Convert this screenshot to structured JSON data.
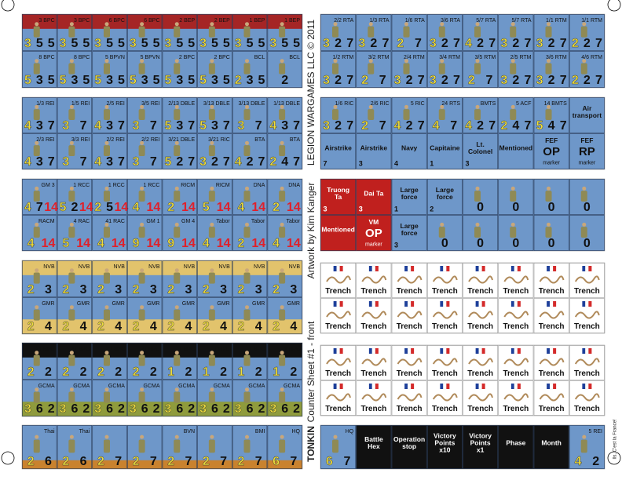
{
  "sheet": {
    "publisher": "LEGION WARGAMES LLC © 2011",
    "artwork": "Artwork by Kim Kanger",
    "title": "Counter Sheet #1 - front",
    "game": "TONKIN",
    "motto": "Ils, C'est la France!"
  },
  "blocks": [
    {
      "counters": [
        {
          "unit": "3 BPC",
          "factors": [
            3,
            5,
            5
          ]
        },
        {
          "unit": "3 BPC",
          "factors": [
            3,
            5,
            5
          ]
        },
        {
          "unit": "6 BPC",
          "factors": [
            3,
            5,
            5
          ]
        },
        {
          "unit": "6 BPC",
          "factors": [
            3,
            5,
            5
          ]
        },
        {
          "unit": "2 BEP",
          "factors": [
            3,
            5,
            5
          ]
        },
        {
          "unit": "2 BEP",
          "factors": [
            3,
            5,
            5
          ]
        },
        {
          "unit": "1 BEP",
          "factors": [
            3,
            5,
            5
          ]
        },
        {
          "unit": "1 BEP",
          "factors": [
            3,
            5,
            5
          ]
        },
        {
          "unit": "8 BPC",
          "factors": [
            5,
            3,
            5
          ]
        },
        {
          "unit": "8 BPC",
          "factors": [
            5,
            3,
            5
          ]
        },
        {
          "unit": "5 BPVN",
          "factors": [
            5,
            3,
            5
          ]
        },
        {
          "unit": "5 BPVN",
          "factors": [
            5,
            3,
            5
          ]
        },
        {
          "unit": "2 BPC",
          "factors": [
            5,
            3,
            5
          ]
        },
        {
          "unit": "2 BPC",
          "factors": [
            5,
            3,
            5
          ]
        },
        {
          "unit": "BCL",
          "factors": [
            2,
            3,
            5
          ]
        },
        {
          "unit": "BCL",
          "factors": [
            2
          ]
        }
      ]
    },
    {
      "counters": [
        {
          "unit": "1/3 REI",
          "factors": [
            4,
            3,
            7
          ]
        },
        {
          "unit": "1/5 REI",
          "factors": [
            3,
            7
          ]
        },
        {
          "unit": "2/5 REI",
          "factors": [
            4,
            3,
            7
          ]
        },
        {
          "unit": "3/5 REI",
          "factors": [
            3,
            7
          ]
        },
        {
          "unit": "2/13 DBLE",
          "factors": [
            5,
            3,
            7
          ]
        },
        {
          "unit": "3/13 DBLE",
          "factors": [
            5,
            3,
            7
          ]
        },
        {
          "unit": "3/13 DBLE",
          "factors": [
            3,
            7
          ]
        },
        {
          "unit": "1/13 DBLE",
          "factors": [
            4,
            3,
            7
          ]
        },
        {
          "unit": "2/3 REI",
          "factors": [
            4,
            3,
            7
          ]
        },
        {
          "unit": "3/3 REI",
          "factors": [
            3,
            7
          ]
        },
        {
          "unit": "2/2 REI",
          "factors": [
            4,
            3,
            7
          ]
        },
        {
          "unit": "2/2 REI",
          "factors": [
            3,
            7
          ]
        },
        {
          "unit": "3/21 DBLE",
          "factors": [
            5,
            2,
            7
          ]
        },
        {
          "unit": "3/21 RIC",
          "factors": [
            3,
            2,
            7
          ]
        },
        {
          "unit": "BTA",
          "factors": [
            4,
            2,
            7
          ]
        },
        {
          "unit": "BTA",
          "factors": [
            2,
            4,
            7
          ]
        }
      ]
    },
    {
      "counters": [
        {
          "unit": "GM 3",
          "factors": [
            4,
            7,
            14
          ]
        },
        {
          "unit": "1 RCC",
          "factors": [
            5,
            2,
            14
          ]
        },
        {
          "unit": "1 RCC",
          "factors": [
            2,
            5,
            14
          ]
        },
        {
          "unit": "1 RCC",
          "factors": [
            4,
            14
          ]
        },
        {
          "unit": "RICM",
          "factors": [
            2,
            14
          ]
        },
        {
          "unit": "RICM",
          "factors": [
            5,
            14
          ]
        },
        {
          "unit": "DNA",
          "factors": [
            4,
            14
          ]
        },
        {
          "unit": "DNA",
          "factors": [
            2,
            14
          ]
        },
        {
          "unit": "RACM",
          "factors": [
            4,
            14
          ]
        },
        {
          "unit": "4 RAC",
          "factors": [
            5,
            14
          ]
        },
        {
          "unit": "41 RAC",
          "factors": [
            4,
            14
          ]
        },
        {
          "unit": "GM 1",
          "factors": [
            9,
            14
          ]
        },
        {
          "unit": "GM 4",
          "factors": [
            9,
            14
          ]
        },
        {
          "unit": "Tabor",
          "factors": [
            4,
            14
          ]
        },
        {
          "unit": "Tabor",
          "factors": [
            2,
            14
          ]
        },
        {
          "unit": "Tabor",
          "factors": [
            4,
            14
          ]
        }
      ]
    },
    {
      "counters": [
        {
          "unit": "NVB",
          "factors": [
            2,
            3
          ]
        },
        {
          "unit": "NVB",
          "factors": [
            2,
            3
          ]
        },
        {
          "unit": "NVB",
          "factors": [
            2,
            3
          ]
        },
        {
          "unit": "NVB",
          "factors": [
            2,
            3
          ]
        },
        {
          "unit": "NVB",
          "factors": [
            2,
            3
          ]
        },
        {
          "unit": "NVB",
          "factors": [
            2,
            3
          ]
        },
        {
          "unit": "NVB",
          "factors": [
            2,
            3
          ]
        },
        {
          "unit": "NVB",
          "factors": [
            2,
            3
          ]
        },
        {
          "unit": "GMR",
          "factors": [
            2,
            4
          ]
        },
        {
          "unit": "GMR",
          "factors": [
            2,
            4
          ]
        },
        {
          "unit": "GMR",
          "factors": [
            2,
            4
          ]
        },
        {
          "unit": "GMR",
          "factors": [
            2,
            4
          ]
        },
        {
          "unit": "GMR",
          "factors": [
            2,
            4
          ]
        },
        {
          "unit": "GMR",
          "factors": [
            2,
            4
          ]
        },
        {
          "unit": "GMR",
          "factors": [
            2,
            4
          ]
        },
        {
          "unit": "GMR",
          "factors": [
            2,
            4
          ]
        }
      ]
    },
    {
      "counters": [
        {
          "unit": "21 BPC",
          "factors": [
            2,
            2
          ]
        },
        {
          "unit": "21 BPC",
          "factors": [
            2,
            2
          ]
        },
        {
          "unit": "21 BPC",
          "factors": [
            2,
            2
          ]
        },
        {
          "unit": "21 BPC",
          "factors": [
            2,
            2
          ]
        },
        {
          "unit": "1 BPC",
          "factors": [
            1,
            2
          ]
        },
        {
          "unit": "1 BPC",
          "factors": [
            1,
            2
          ]
        },
        {
          "unit": "1 BPC",
          "factors": [
            1,
            2
          ]
        },
        {
          "unit": "1 BPC",
          "factors": [
            1,
            2
          ]
        },
        {
          "unit": "GCMA",
          "factors": [
            3,
            6,
            2
          ]
        },
        {
          "unit": "GCMA",
          "factors": [
            3,
            6,
            2
          ]
        },
        {
          "unit": "GCMA",
          "factors": [
            3,
            6,
            2
          ]
        },
        {
          "unit": "GCMA",
          "factors": [
            3,
            6,
            2
          ]
        },
        {
          "unit": "GCMA",
          "factors": [
            3,
            6,
            2
          ]
        },
        {
          "unit": "GCMA",
          "factors": [
            3,
            6,
            2
          ]
        },
        {
          "unit": "GCMA",
          "factors": [
            3,
            6,
            2
          ]
        },
        {
          "unit": "GCMA",
          "factors": [
            3,
            6,
            2
          ]
        }
      ]
    },
    {
      "counters": [
        {
          "unit": "2/2 RTA",
          "factors": [
            3,
            2,
            7
          ]
        },
        {
          "unit": "1/3 RTA",
          "factors": [
            3,
            2,
            7
          ]
        },
        {
          "unit": "1/6 RTA",
          "factors": [
            2,
            7
          ]
        },
        {
          "unit": "3/6 RTA",
          "factors": [
            3,
            2,
            7
          ]
        },
        {
          "unit": "5/7 RTA",
          "factors": [
            4,
            2,
            7
          ]
        },
        {
          "unit": "5/7 RTA",
          "factors": [
            3,
            2,
            7
          ]
        },
        {
          "unit": "1/1 RTM",
          "factors": [
            3,
            2,
            7
          ]
        },
        {
          "unit": "1/1 RTM",
          "factors": [
            2,
            2,
            7
          ]
        },
        {
          "unit": "1/2 RTM",
          "factors": [
            3,
            2,
            7
          ]
        },
        {
          "unit": "3/2 RTM",
          "factors": [
            2,
            7
          ]
        },
        {
          "unit": "2/4 RTM",
          "factors": [
            3,
            2,
            7
          ]
        },
        {
          "unit": "3/4 RTM",
          "factors": [
            3,
            2,
            7
          ]
        },
        {
          "unit": "3/5 RTM",
          "factors": [
            2,
            7
          ]
        },
        {
          "unit": "2/5 RTM",
          "factors": [
            3,
            2,
            7
          ]
        },
        {
          "unit": "3/6 RTM",
          "factors": [
            3,
            2,
            7
          ]
        },
        {
          "unit": "4/6 RTM",
          "factors": [
            2,
            2,
            7
          ]
        }
      ]
    },
    {
      "counters": [
        {
          "unit": "1/6 RIC",
          "factors": [
            3,
            2,
            7
          ]
        },
        {
          "unit": "2/6 RIC",
          "factors": [
            2,
            7
          ]
        },
        {
          "unit": "5 RIC",
          "factors": [
            4,
            2,
            7
          ]
        },
        {
          "unit": "24 RTS",
          "factors": [
            4,
            7
          ]
        },
        {
          "unit": "BMTS",
          "factors": [
            4,
            2,
            7
          ]
        },
        {
          "unit": "5 ACF",
          "factors": [
            2,
            4,
            7
          ]
        },
        {
          "unit": "14 BMTS",
          "factors": [
            5,
            4,
            7
          ]
        },
        {
          "label": "Air transport"
        },
        {
          "label": "Airstrike",
          "factors": [
            7
          ]
        },
        {
          "label": "Airstrike",
          "factors": [
            3
          ]
        },
        {
          "label": "Navy",
          "factors": [
            4
          ]
        },
        {
          "label": "Capitaine",
          "factors": [
            1
          ]
        },
        {
          "label": "Lt. Colonel",
          "factors": [
            3
          ]
        },
        {
          "label": "Mentioned"
        },
        {
          "label": "FEF",
          "sub": "OP",
          "note": "marker"
        },
        {
          "label": "FEF",
          "sub": "RP",
          "note": "marker"
        }
      ]
    },
    {
      "counters": [
        {
          "label": "Truong Ta",
          "factors": [
            3
          ]
        },
        {
          "label": "Dai Ta",
          "factors": [
            3
          ]
        },
        {
          "label": "Large force",
          "factors": [
            1
          ]
        },
        {
          "label": "Large force",
          "factors": [
            2
          ]
        },
        {
          "factors": [
            0
          ]
        },
        {
          "factors": [
            0
          ]
        },
        {
          "factors": [
            0
          ]
        },
        {
          "factors": [
            0
          ]
        },
        {
          "label": "Mentioned"
        },
        {
          "label": "VM",
          "sub": "OP",
          "note": "marker"
        },
        {
          "label": "Large force",
          "factors": [
            3
          ]
        },
        {
          "factors": [
            0
          ]
        },
        {
          "factors": [
            0
          ]
        },
        {
          "factors": [
            0
          ]
        },
        {
          "factors": [
            0
          ]
        },
        {
          "factors": [
            0
          ]
        }
      ]
    },
    {
      "counters": [
        {
          "label": "Trench"
        },
        {
          "label": "Trench"
        },
        {
          "label": "Trench"
        },
        {
          "label": "Trench"
        },
        {
          "label": "Trench"
        },
        {
          "label": "Trench"
        },
        {
          "label": "Trench"
        },
        {
          "label": "Trench"
        },
        {
          "label": "Trench"
        },
        {
          "label": "Trench"
        },
        {
          "label": "Trench"
        },
        {
          "label": "Trench"
        },
        {
          "label": "Trench"
        },
        {
          "label": "Trench"
        },
        {
          "label": "Trench"
        },
        {
          "label": "Trench"
        }
      ]
    },
    {
      "counters": [
        {
          "label": "Trench"
        },
        {
          "label": "Trench"
        },
        {
          "label": "Trench"
        },
        {
          "label": "Trench"
        },
        {
          "label": "Trench"
        },
        {
          "label": "Trench"
        },
        {
          "label": "Trench"
        },
        {
          "label": "Trench"
        },
        {
          "label": "Trench"
        },
        {
          "label": "Trench"
        },
        {
          "label": "Trench"
        },
        {
          "label": "Trench"
        },
        {
          "label": "Trench"
        },
        {
          "label": "Trench"
        },
        {
          "label": "Trench"
        },
        {
          "label": "Trench"
        }
      ]
    },
    {
      "counters": [
        {
          "unit": "Thai",
          "factors": [
            2,
            6
          ]
        },
        {
          "unit": "Thai",
          "factors": [
            2,
            6
          ]
        },
        {
          "factors": [
            2,
            7
          ]
        },
        {
          "factors": [
            2,
            7
          ]
        },
        {
          "unit": "BVN",
          "factors": [
            2,
            7
          ]
        },
        {
          "factors": [
            2,
            7
          ]
        },
        {
          "unit": "BMI",
          "factors": [
            2,
            7
          ]
        },
        {
          "unit": "HQ",
          "factors": [
            6,
            7
          ]
        }
      ]
    },
    {
      "counters": [
        {
          "unit": "HQ",
          "factors": [
            6,
            7
          ]
        },
        {
          "label": "Battle Hex"
        },
        {
          "label": "Operation stop"
        },
        {
          "label": "Victory Points x10"
        },
        {
          "label": "Victory Points x1"
        },
        {
          "label": "Phase"
        },
        {
          "label": "Month"
        },
        {
          "unit": "5 REI",
          "factors": [
            4,
            2
          ]
        }
      ]
    }
  ]
}
